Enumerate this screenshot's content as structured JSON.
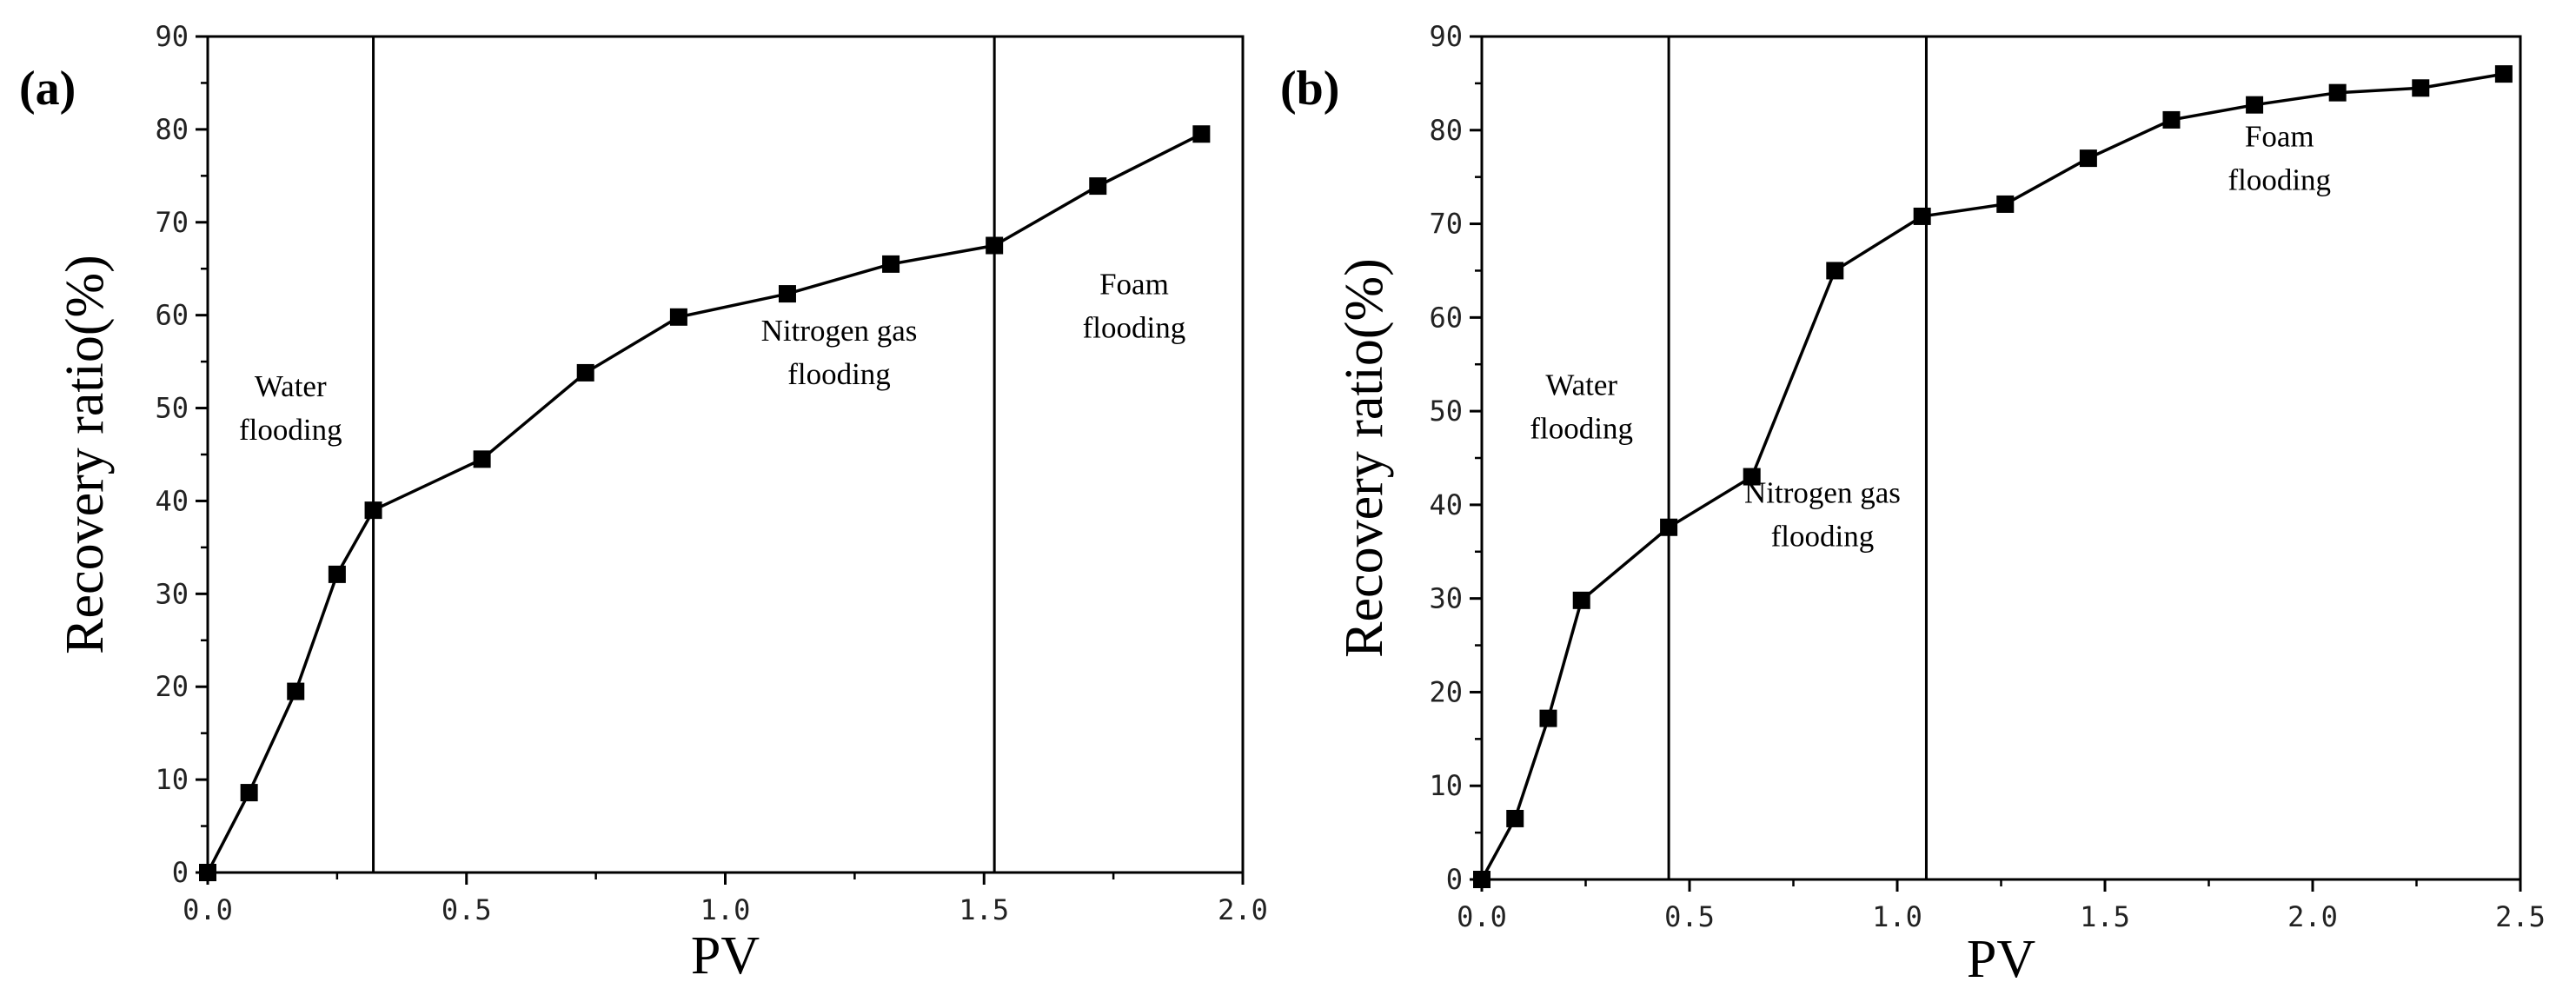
{
  "chart_data": [
    {
      "type": "line",
      "panel_label": "(a)",
      "xlabel": "PV",
      "ylabel": "Recovery ratio(%)",
      "xlim": [
        0,
        2.0
      ],
      "ylim": [
        0,
        90
      ],
      "xticks": [
        "0.0",
        "0.5",
        "1.0",
        "1.5",
        "2.0"
      ],
      "yticks": [
        "0",
        "10",
        "20",
        "30",
        "40",
        "50",
        "60",
        "70",
        "80",
        "90"
      ],
      "grid": false,
      "series": [
        {
          "name": "Recovery ratio",
          "marker": "square",
          "color": "#000000",
          "x": [
            0.0,
            0.08,
            0.17,
            0.25,
            0.32,
            0.53,
            0.73,
            0.91,
            1.12,
            1.32,
            1.52,
            1.72,
            1.92
          ],
          "y": [
            0.0,
            8.6,
            19.5,
            32.1,
            39.0,
            44.5,
            53.8,
            59.8,
            62.3,
            65.5,
            67.5,
            73.9,
            79.5
          ]
        }
      ],
      "vlines": [
        0.32,
        1.52
      ],
      "regions": [
        {
          "line1": "Water",
          "line2": "flooding",
          "x": 0.16,
          "y": 50.5
        },
        {
          "line1": "Nitrogen gas",
          "line2": "flooding",
          "x": 1.22,
          "y": 56.5
        },
        {
          "line1": "Foam",
          "line2": "flooding",
          "x": 1.79,
          "y": 61.5
        }
      ]
    },
    {
      "type": "line",
      "panel_label": "(b)",
      "xlabel": "PV",
      "ylabel": "Recovery ratio(%)",
      "xlim": [
        0,
        2.5
      ],
      "ylim": [
        0,
        90
      ],
      "xticks": [
        "0.0",
        "0.5",
        "1.0",
        "1.5",
        "2.0",
        "2.5"
      ],
      "yticks": [
        "0",
        "10",
        "20",
        "30",
        "40",
        "50",
        "60",
        "70",
        "80",
        "90"
      ],
      "grid": false,
      "series": [
        {
          "name": "Recovery ratio",
          "marker": "square",
          "color": "#000000",
          "x": [
            0.0,
            0.08,
            0.16,
            0.24,
            0.45,
            0.65,
            0.85,
            1.06,
            1.26,
            1.46,
            1.66,
            1.86,
            2.06,
            2.26,
            2.46
          ],
          "y": [
            0.0,
            6.5,
            17.2,
            29.8,
            37.6,
            43.0,
            65.0,
            70.8,
            72.1,
            77.0,
            81.1,
            82.7,
            84.0,
            84.5,
            86.0
          ]
        }
      ],
      "vlines": [
        0.45,
        1.07
      ],
      "regions": [
        {
          "line1": "Water",
          "line2": "flooding",
          "x": 0.24,
          "y": 51.0
        },
        {
          "line1": "Nitrogen gas",
          "line2": "flooding",
          "x": 0.82,
          "y": 39.5
        },
        {
          "line1": "Foam",
          "line2": "flooding",
          "x": 1.92,
          "y": 77.5
        }
      ]
    }
  ]
}
